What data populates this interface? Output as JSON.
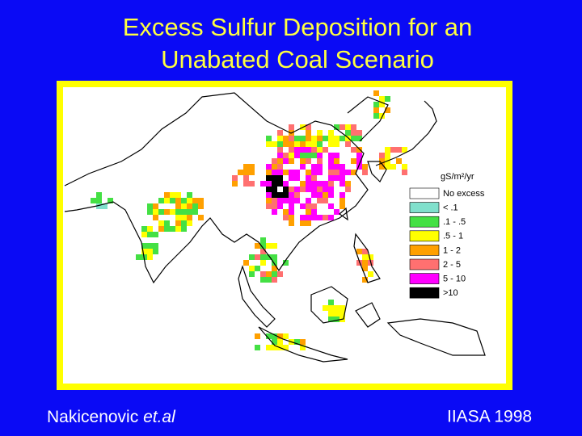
{
  "title": {
    "line1": "Excess Sulfur Deposition for an",
    "line2": "Unabated Coal Scenario"
  },
  "legend": {
    "unit": "gS/m²/yr",
    "items": [
      {
        "label": "No excess",
        "color": "#ffffff"
      },
      {
        "label": "< .1",
        "color": "#80e0cc"
      },
      {
        "label": ".1 - .5",
        "color": "#44e044"
      },
      {
        "label": ".5 - 1",
        "color": "#ffff00"
      },
      {
        "label": "1 - 2",
        "color": "#ffa000"
      },
      {
        "label": "2 - 5",
        "color": "#ff7070"
      },
      {
        "label": "5 - 10",
        "color": "#ff00ff"
      },
      {
        "label": ">10",
        "color": "#000000"
      }
    ]
  },
  "footer": {
    "author": "Nakicenovic",
    "author_suffix": "et.al",
    "source": "IIASA 1998"
  }
}
